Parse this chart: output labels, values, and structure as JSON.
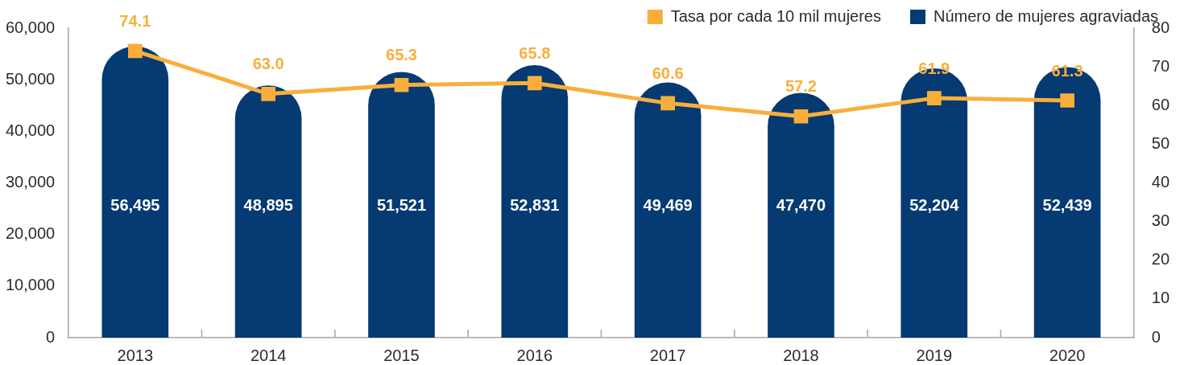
{
  "chart_data": {
    "type": "bar",
    "categories": [
      "2013",
      "2014",
      "2015",
      "2016",
      "2017",
      "2018",
      "2019",
      "2020"
    ],
    "series": [
      {
        "name": "Tasa por cada 10 mil mujeres",
        "type": "line",
        "axis": "y2",
        "color": "#f9ae3c",
        "values": [
          74.1,
          63.0,
          65.3,
          65.8,
          60.6,
          57.2,
          61.9,
          61.3
        ],
        "value_labels": [
          "74.1",
          "63.0",
          "65.3",
          "65.8",
          "60.6",
          "57.2",
          "61.9",
          "61.3"
        ]
      },
      {
        "name": "Número de mujeres agraviadas",
        "color": "#053a72",
        "values": [
          56495,
          48895,
          51521,
          52831,
          49469,
          47470,
          52204,
          52439
        ],
        "value_labels": [
          "56,495",
          "48,895",
          "51,521",
          "52,831",
          "49,469",
          "47,470",
          "52,204",
          "52,439"
        ]
      }
    ],
    "ylim": [
      0,
      60000
    ],
    "yticks": [
      0,
      {
        "value": 10000,
        "label": "10,000"
      },
      {
        "value": 20000,
        "label": "20,000"
      },
      {
        "value": 30000,
        "label": "30,000"
      },
      {
        "value": 40000,
        "label": "40,000"
      },
      {
        "value": 50000,
        "label": "50,000"
      },
      {
        "value": 60000,
        "label": "60,000"
      }
    ],
    "y2lim": [
      0,
      80
    ],
    "y2ticks": [
      0,
      10,
      20,
      30,
      40,
      50,
      60,
      70,
      80
    ],
    "legend": "top right",
    "marker": "square",
    "line_style": "solid",
    "grid": false
  }
}
